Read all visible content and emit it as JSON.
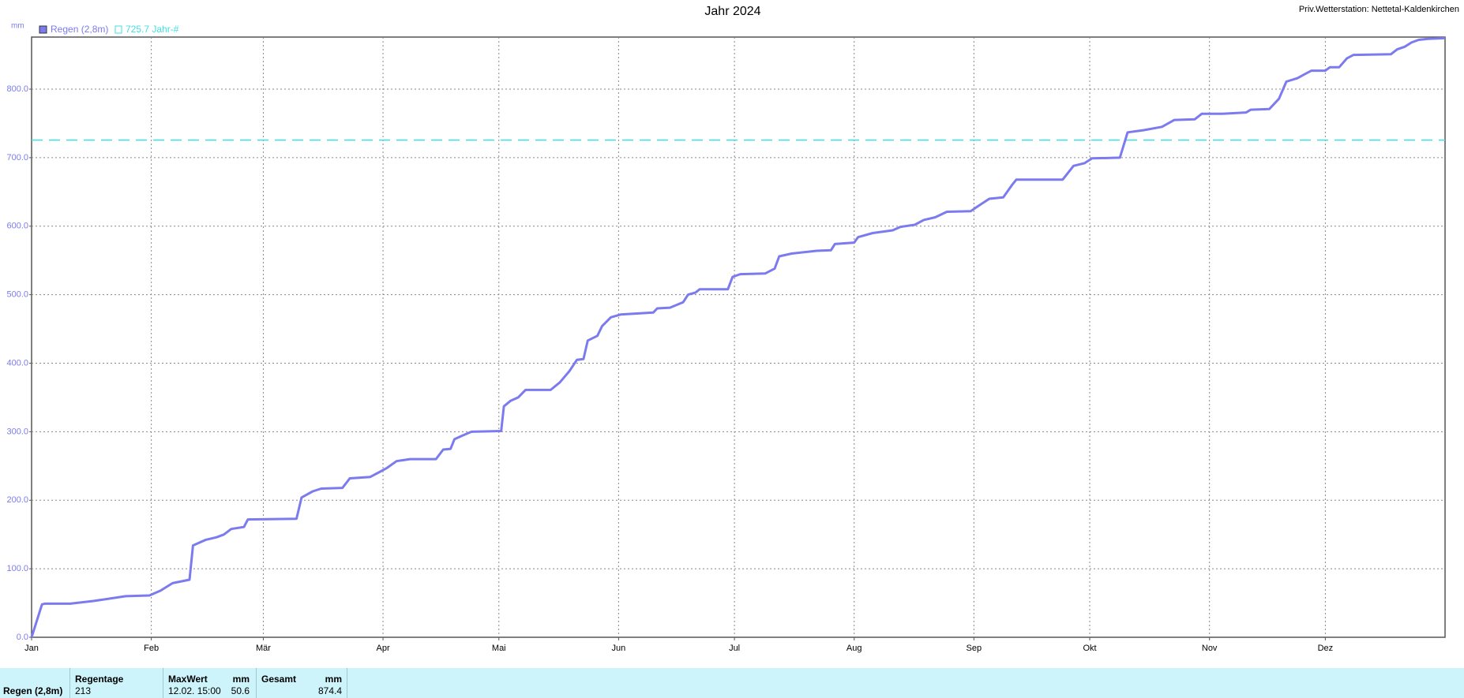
{
  "chart_data": {
    "type": "line",
    "title": "Jahr 2024",
    "station": "Priv.Wetterstation: Nettetal-Kaldenkirchen",
    "y_label": "mm",
    "x": [
      0,
      2.7,
      3.4,
      10,
      16,
      24.4,
      30.5,
      33.4,
      36.5,
      40.9,
      41.8,
      45,
      47.9,
      49.8,
      51.7,
      55,
      56,
      68.6,
      69.9,
      72.8,
      75,
      80.5,
      82.4,
      87.7,
      89.7,
      92,
      94.5,
      98,
      104.7,
      106.6,
      108.5,
      109.5,
      111.4,
      113.9,
      121.6,
      122.3,
      124,
      126,
      127.9,
      134.4,
      136.8,
      139.2,
      141.2,
      142.9,
      144,
      146.5,
      147.7,
      150,
      152.5,
      161,
      162,
      165.3,
      168.7,
      170,
      171.9,
      173,
      180.3,
      181.5,
      183.5,
      190,
      192.4,
      193.6,
      196.8,
      203.3,
      207,
      208,
      213,
      214,
      217.8,
      223,
      225,
      228.7,
      231,
      234,
      237,
      243.2,
      245,
      248,
      251.6,
      254,
      255,
      267,
      269.8,
      272.7,
      274.6,
      281.8,
      283.8,
      287.9,
      292.7,
      295.9,
      301.2,
      303,
      308.4,
      314.5,
      315.7,
      320.5,
      323,
      324.9,
      327.8,
      329.7,
      331.4,
      335,
      336.2,
      338.6,
      340.6,
      342.3,
      352,
      353.6,
      355.6,
      357.3,
      359.2,
      361.6,
      366
    ],
    "series": [
      {
        "name": "Regen (2,8m)",
        "color": "#7b7bef",
        "values": [
          0,
          48,
          49,
          49,
          53,
          60,
          61,
          68,
          79,
          84,
          134,
          142,
          146,
          150,
          158,
          161,
          172,
          173,
          204,
          213,
          217,
          218,
          232,
          234,
          240,
          247,
          257,
          260,
          260,
          274,
          275,
          289,
          294,
          300,
          301,
          337,
          345,
          350,
          361,
          361,
          372,
          388,
          405,
          406,
          433,
          440,
          454,
          467,
          471,
          474,
          480,
          481,
          489,
          500,
          503,
          508,
          508,
          526,
          530,
          531,
          538,
          556,
          560,
          564,
          565,
          574,
          576,
          584,
          590,
          594,
          599,
          602,
          609,
          613,
          621,
          622,
          629,
          640,
          642,
          661,
          668,
          668,
          688,
          692,
          699,
          700,
          737,
          740,
          745,
          755,
          756,
          764,
          764,
          766,
          770,
          771,
          786,
          811,
          816,
          822,
          827,
          827,
          832,
          832,
          845,
          850,
          851,
          858,
          862,
          868,
          872,
          873.3,
          874.4
        ]
      }
    ],
    "reference_line": {
      "value": 725.7,
      "label": "725.7 Jahr-#",
      "color": "#40e0e0"
    },
    "xlim": [
      0,
      366
    ],
    "xticks": [
      {
        "value": 0,
        "label": "Jan"
      },
      {
        "value": 31,
        "label": "Feb"
      },
      {
        "value": 60,
        "label": "Mär"
      },
      {
        "value": 91,
        "label": "Apr"
      },
      {
        "value": 121,
        "label": "Mai"
      },
      {
        "value": 152,
        "label": "Jun"
      },
      {
        "value": 182,
        "label": "Jul"
      },
      {
        "value": 213,
        "label": "Aug"
      },
      {
        "value": 244,
        "label": "Sep"
      },
      {
        "value": 274,
        "label": "Okt"
      },
      {
        "value": 305,
        "label": "Nov"
      },
      {
        "value": 335,
        "label": "Dez"
      }
    ],
    "ylim": [
      0,
      876
    ],
    "yticks": [
      {
        "value": 0,
        "label": "0.0"
      },
      {
        "value": 100,
        "label": "100.0"
      },
      {
        "value": 200,
        "label": "200.0"
      },
      {
        "value": 300,
        "label": "300.0"
      },
      {
        "value": 400,
        "label": "400.0"
      },
      {
        "value": 500,
        "label": "500.0"
      },
      {
        "value": 600,
        "label": "600.0"
      },
      {
        "value": 700,
        "label": "700.0"
      },
      {
        "value": 800,
        "label": "800.0"
      }
    ],
    "grid": true
  },
  "stats_table": {
    "row_label": "Regen (2,8m)",
    "regentage_header": "Regentage",
    "regentage": "213",
    "maxwert_header": "MaxWert",
    "maxwert_unit": "mm",
    "maxwert_time": "12.02. 15:00",
    "maxwert": "50.6",
    "gesamt_header": "Gesamt",
    "gesamt_unit": "mm",
    "gesamt": "874.4"
  }
}
